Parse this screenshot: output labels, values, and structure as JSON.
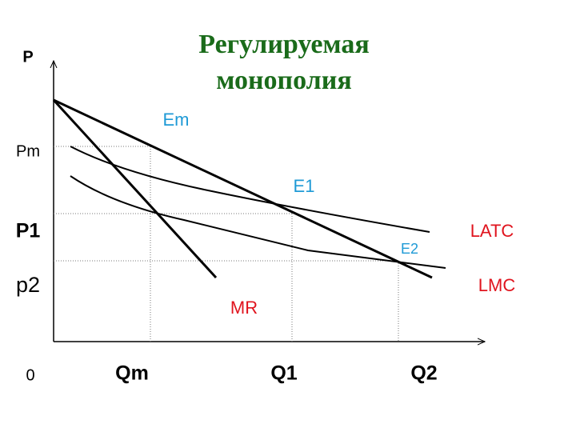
{
  "title": [
    "Регулируемая",
    "монополия"
  ],
  "axes": {
    "y": "P",
    "origin": "0"
  },
  "price_labels": [
    "Pm",
    "P1",
    "p2"
  ],
  "quantity_labels": [
    "Qm",
    "Q1",
    "Q2"
  ],
  "equilibria": [
    "Em",
    "E1",
    "E2"
  ],
  "curves": {
    "mr": "MR",
    "latc": "LATC",
    "lmc": "LMC"
  }
}
